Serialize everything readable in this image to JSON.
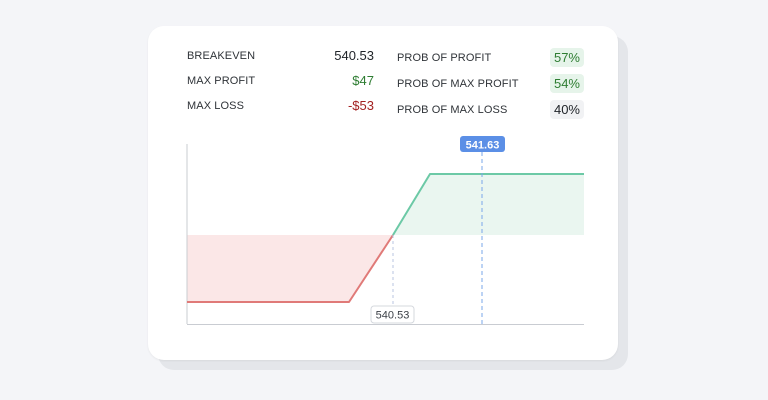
{
  "stats": {
    "breakeven_label": "BREAKEVEN",
    "breakeven_value": "540.53",
    "max_profit_label": "MAX PROFIT",
    "max_profit_value": "$47",
    "max_loss_label": "MAX LOSS",
    "max_loss_value": "-$53",
    "prob_profit_label": "PROB OF PROFIT",
    "prob_profit_value": "57%",
    "prob_max_profit_label": "PROB OF MAX PROFIT",
    "prob_max_profit_value": "54%",
    "prob_max_loss_label": "PROB OF MAX LOSS",
    "prob_max_loss_value": "40%"
  },
  "chart": {
    "current_price_label": "541.63",
    "breakeven_label": "540.53",
    "colors": {
      "profit_line": "#6cc9a6",
      "profit_fill": "#eaf6f0",
      "loss_line": "#e07a78",
      "loss_fill": "#fbe7e7",
      "current_price": "#4a86e8",
      "breakeven_marker": "#b8c4e0"
    }
  }
}
